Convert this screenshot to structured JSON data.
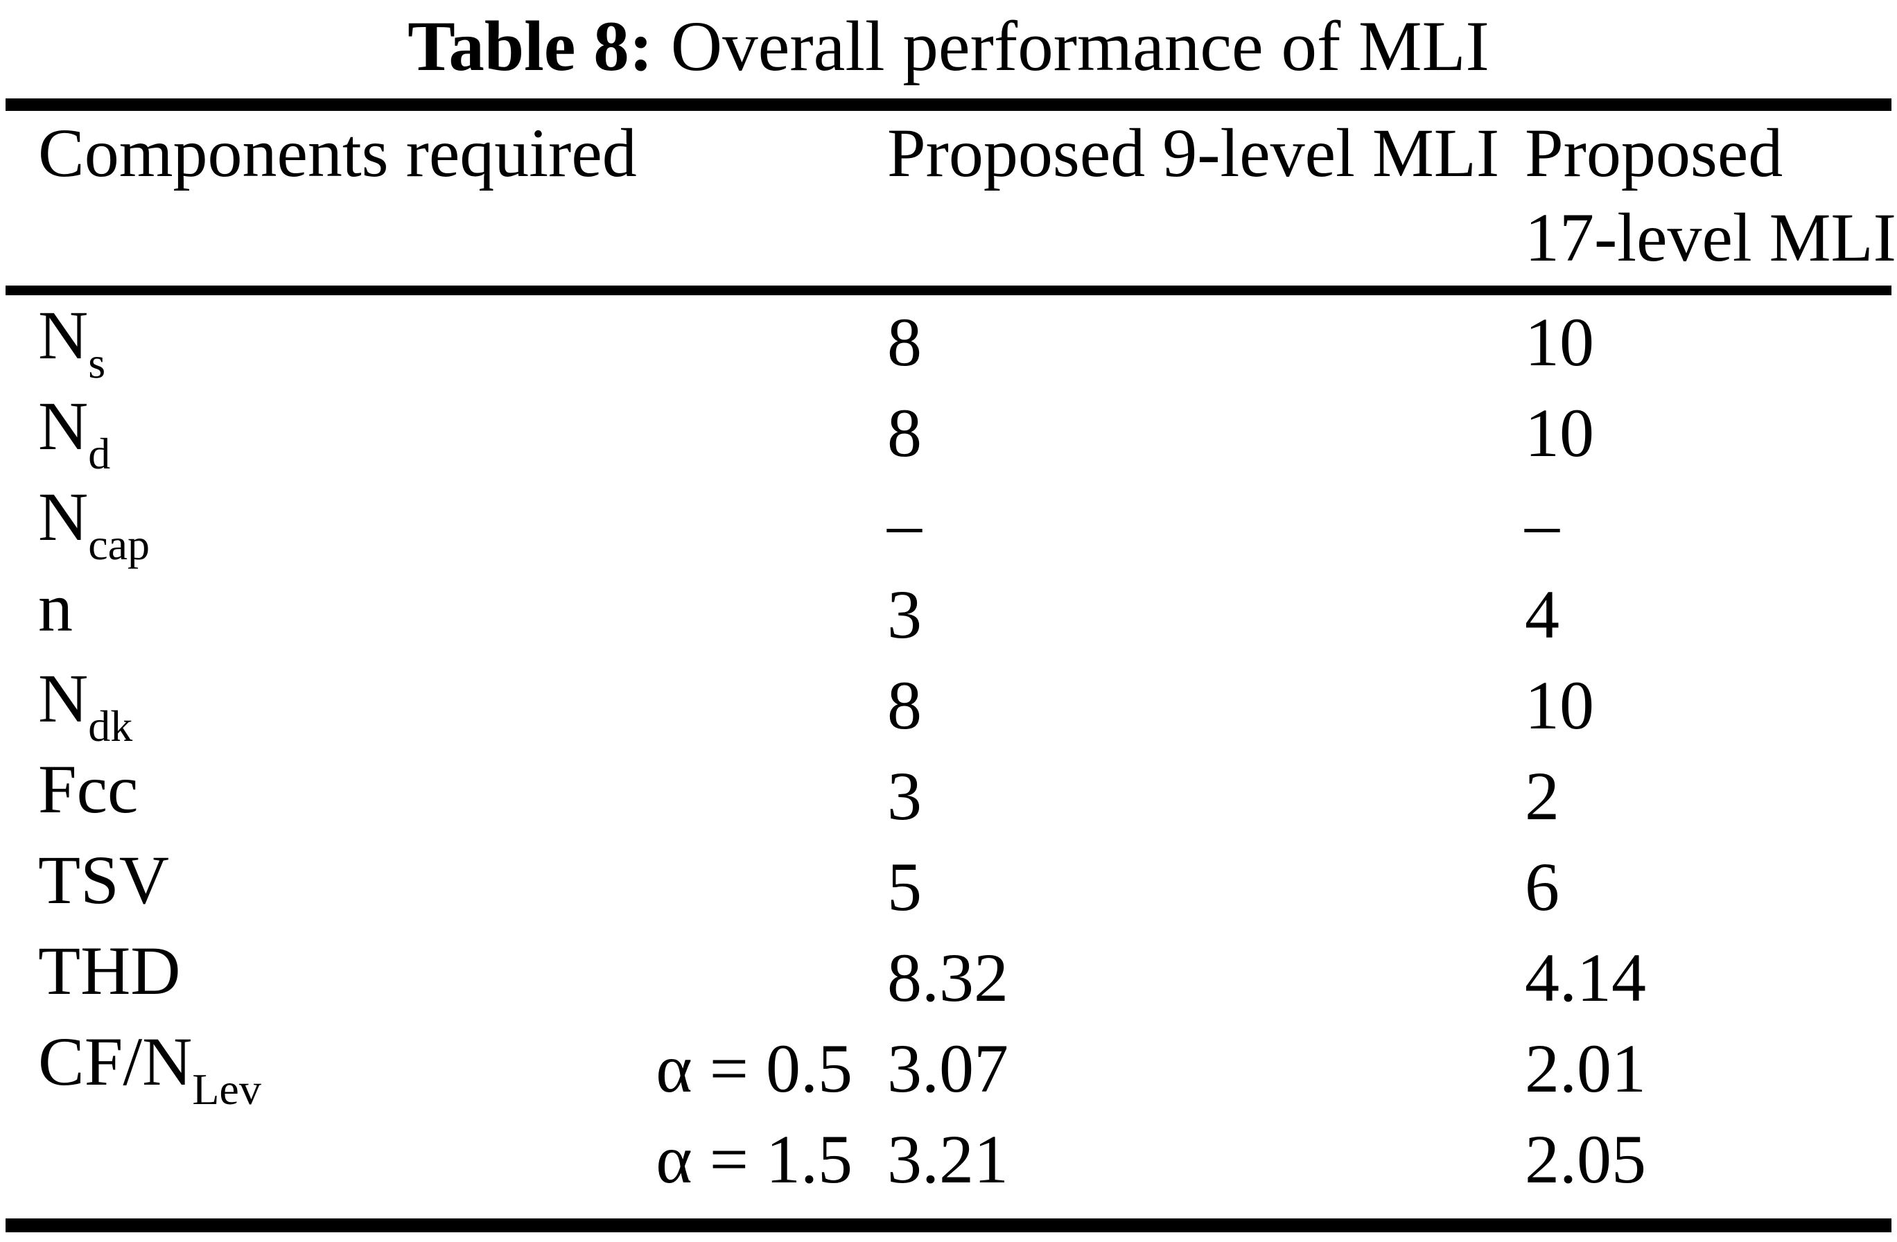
{
  "caption": {
    "label": "Table 8:",
    "text": "Overall performance of MLI"
  },
  "header": {
    "col1": "Components required",
    "col2": "Proposed 9-level MLI",
    "col3_line1": "Proposed",
    "col3_line2": "17-level MLI"
  },
  "rows": [
    {
      "base": "N",
      "sub": "s",
      "alpha": "",
      "v9": "8",
      "v17": "10"
    },
    {
      "base": "N",
      "sub": "d",
      "alpha": "",
      "v9": "8",
      "v17": "10"
    },
    {
      "base": "N",
      "sub": "cap",
      "alpha": "",
      "v9": "–",
      "v17": "–"
    },
    {
      "base": "n",
      "sub": "",
      "alpha": "",
      "v9": "3",
      "v17": "4"
    },
    {
      "base": "N",
      "sub": "dk",
      "alpha": "",
      "v9": "8",
      "v17": "10"
    },
    {
      "base": "Fcc",
      "sub": "",
      "alpha": "",
      "v9": "3",
      "v17": "2"
    },
    {
      "base": "TSV",
      "sub": "",
      "alpha": "",
      "v9": "5",
      "v17": "6"
    },
    {
      "base": "THD",
      "sub": "",
      "alpha": "",
      "v9": "8.32",
      "v17": "4.14"
    },
    {
      "base": "CF/N",
      "sub": "Lev",
      "alpha": "α = 0.5",
      "v9": "3.07",
      "v17": "2.01"
    },
    {
      "base": "",
      "sub": "",
      "alpha": "α = 1.5",
      "v9": "3.21",
      "v17": "2.05"
    }
  ],
  "colors": {
    "text": "#000000",
    "background": "#ffffff",
    "rule": "#000000"
  }
}
